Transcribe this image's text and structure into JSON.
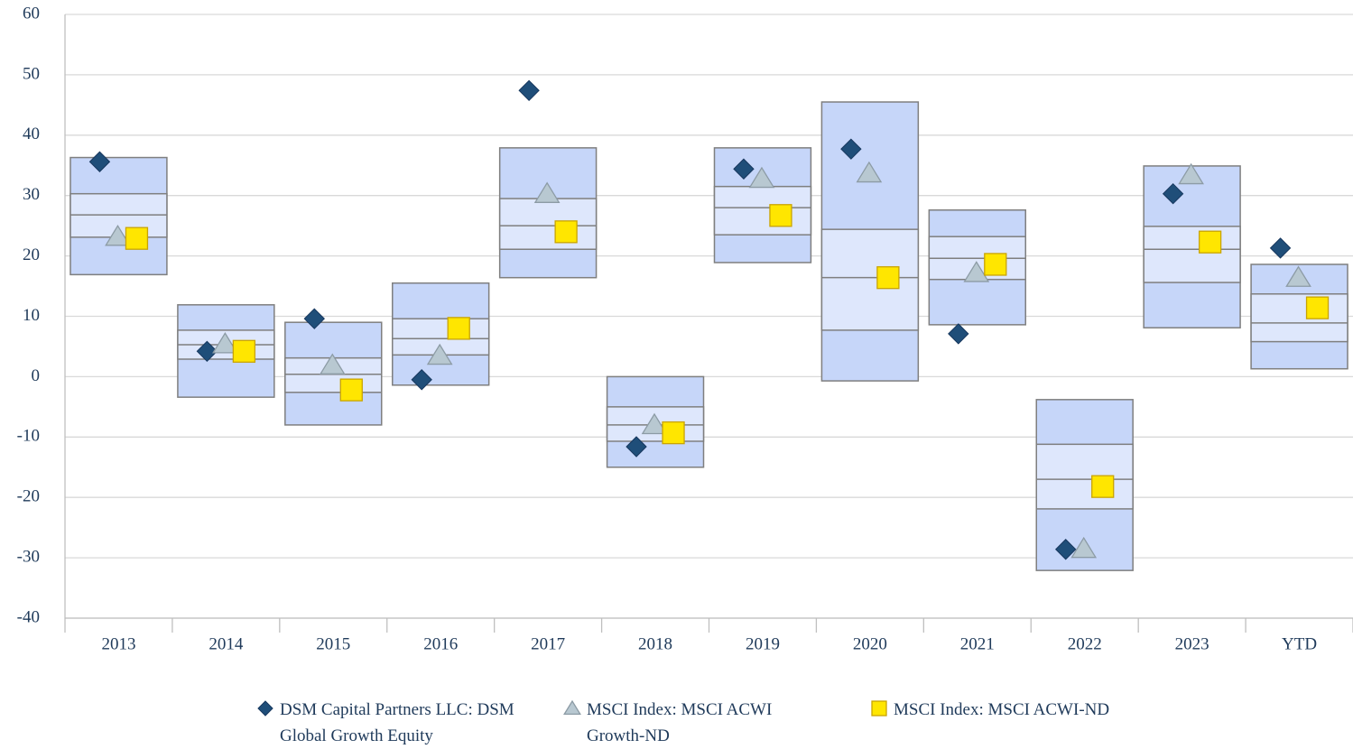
{
  "chart_data": {
    "type": "floating_box",
    "categories": [
      "2013",
      "2014",
      "2015",
      "2016",
      "2017",
      "2018",
      "2019",
      "2020",
      "2021",
      "2022",
      "2023",
      "YTD"
    ],
    "bands": {
      "high": [
        36.3,
        11.9,
        9.0,
        15.5,
        37.9,
        0.0,
        37.9,
        45.5,
        27.6,
        -3.8,
        34.9,
        18.6
      ],
      "upper": [
        30.3,
        7.7,
        3.1,
        9.6,
        29.5,
        -5.0,
        31.5,
        24.4,
        23.2,
        -11.2,
        24.9,
        13.7
      ],
      "median": [
        26.8,
        5.3,
        0.4,
        6.3,
        25.0,
        -8.0,
        28.0,
        16.4,
        19.6,
        -17.0,
        21.1,
        8.9
      ],
      "lower": [
        23.1,
        2.9,
        -2.6,
        3.6,
        21.1,
        -10.7,
        23.5,
        7.7,
        16.1,
        -21.9,
        15.6,
        5.8
      ],
      "low": [
        16.9,
        -3.4,
        -8.0,
        -1.4,
        16.4,
        -15.0,
        18.9,
        -0.7,
        8.6,
        -32.1,
        8.1,
        1.3
      ]
    },
    "outer_color": "#c6d6f9",
    "inner_color": "#dee7fc",
    "series": [
      {
        "name": "DSM Capital Partners LLC: DSM Global Growth Equity",
        "marker": "diamond",
        "color": "#1f4e79",
        "values": [
          35.6,
          4.2,
          9.6,
          -0.5,
          47.4,
          -11.6,
          34.4,
          37.7,
          7.1,
          -28.6,
          30.3,
          21.3
        ]
      },
      {
        "name": "MSCI Index: MSCI ACWI Growth-ND",
        "marker": "triangle",
        "color": "#b8c8d1",
        "values": [
          23.2,
          5.4,
          1.9,
          3.5,
          30.3,
          -8.0,
          32.8,
          33.7,
          17.2,
          -28.5,
          33.4,
          16.4
        ]
      },
      {
        "name": "MSCI Index: MSCI ACWI-ND",
        "marker": "square",
        "color": "#ffe600",
        "values": [
          22.9,
          4.2,
          -2.2,
          8.0,
          24.0,
          -9.3,
          26.7,
          16.4,
          18.6,
          -18.2,
          22.3,
          11.4
        ]
      }
    ],
    "ylim": [
      -40,
      60
    ],
    "yticks": [
      -40,
      -30,
      -20,
      -10,
      0,
      10,
      20,
      30,
      40,
      50,
      60
    ],
    "grid": true
  }
}
